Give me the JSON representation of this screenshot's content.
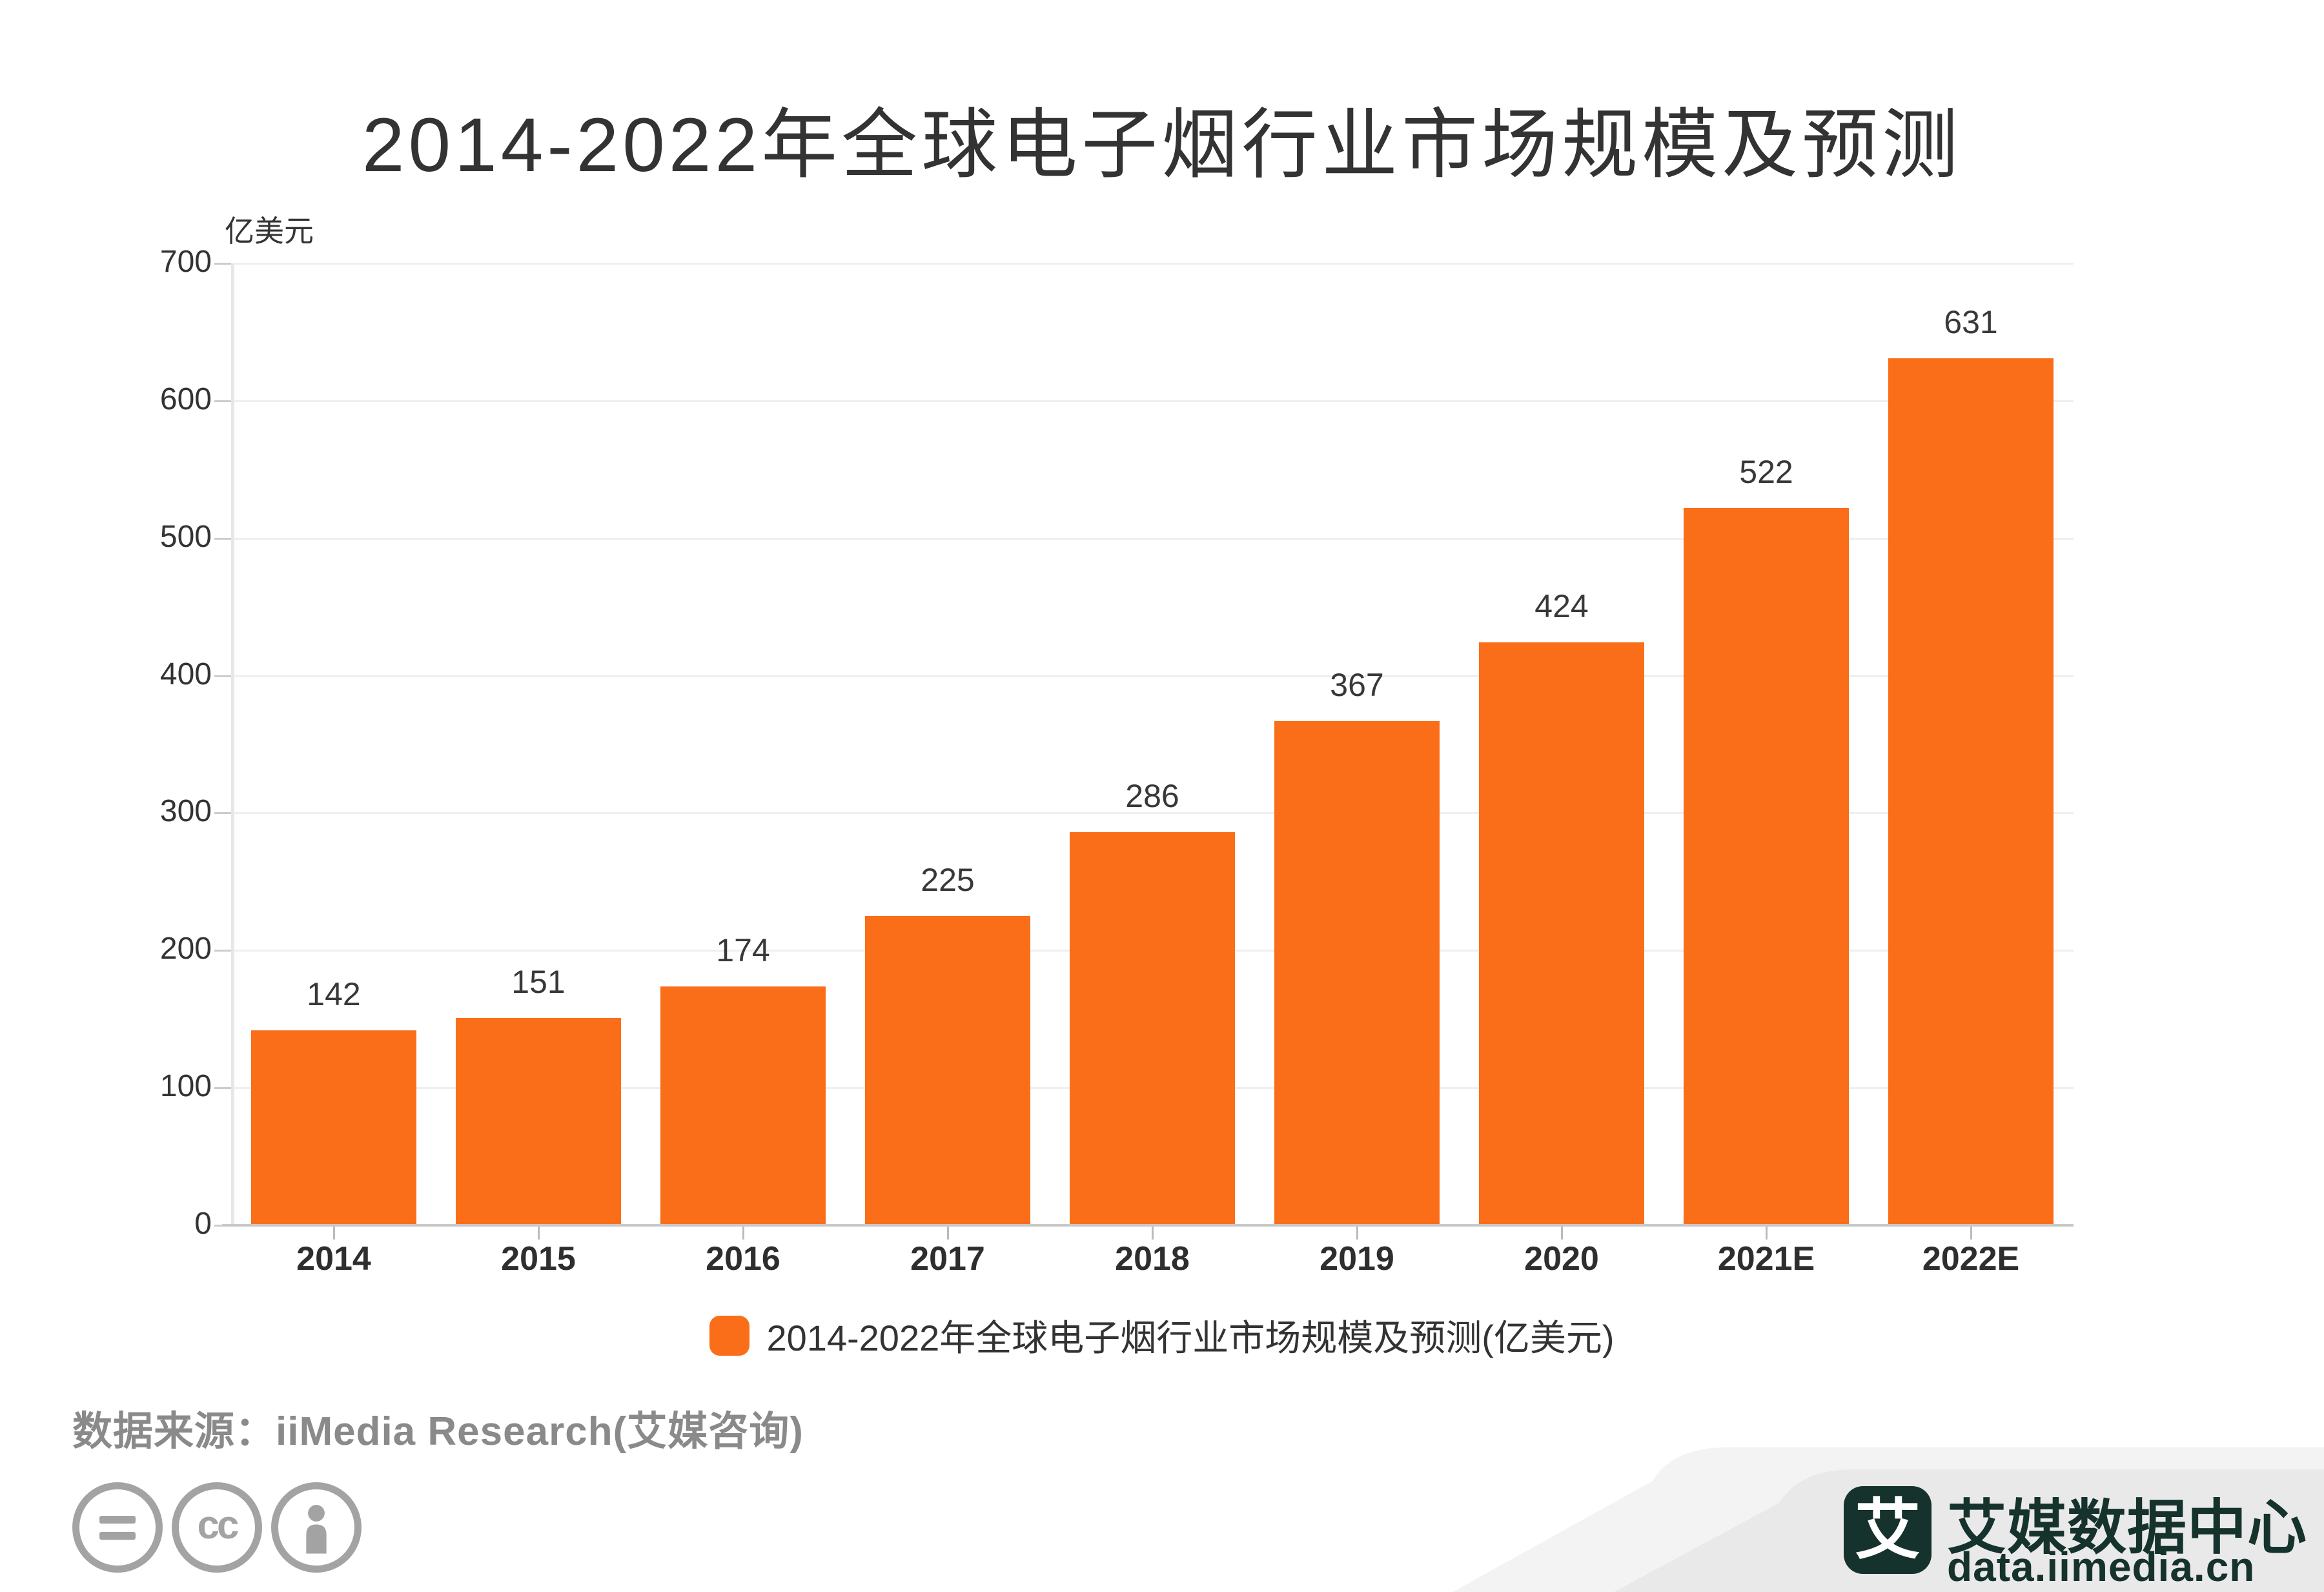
{
  "title": "2014-2022年全球电子烟行业市场规模及预测",
  "y_unit": "亿美元",
  "legend": {
    "label": "2014-2022年全球电子烟行业市场规模及预测(亿美元)",
    "marker_color": "#FA6E19"
  },
  "source": {
    "text": "数据来源：iiMedia Research(艾媒咨询)"
  },
  "cc_icons": [
    "equals-icon",
    "cc-icon",
    "person-icon"
  ],
  "logo": {
    "symbol": "艾",
    "title": "艾媒数据中心",
    "url": "data.iimedia.cn"
  },
  "colors": {
    "bar": "#FA6E19",
    "title_text": "#333333",
    "axis_text": "#333333",
    "grid_line": "#efefef",
    "axis_line": "#c9c9c9",
    "source_text": "#8a8a8a",
    "icon_gray": "#a3a3a3",
    "panel_light": "#f3f3f3",
    "panel_main": "#e9e9e9",
    "logo_dark": "#16322d"
  },
  "chart_data": {
    "type": "bar",
    "title": "2014-2022年全球电子烟行业市场规模及预测",
    "series_name": "2014-2022年全球电子烟行业市场规模及预测(亿美元)",
    "categories": [
      "2014",
      "2015",
      "2016",
      "2017",
      "2018",
      "2019",
      "2020",
      "2021E",
      "2022E"
    ],
    "values": [
      142,
      151,
      174,
      225,
      286,
      367,
      424,
      522,
      631
    ],
    "xlabel": "",
    "ylabel": "亿美元",
    "ylim": [
      0,
      700
    ],
    "ytick_interval": 100,
    "grid": true,
    "legend_position": "bottom",
    "bar_color": "#FA6E19"
  }
}
